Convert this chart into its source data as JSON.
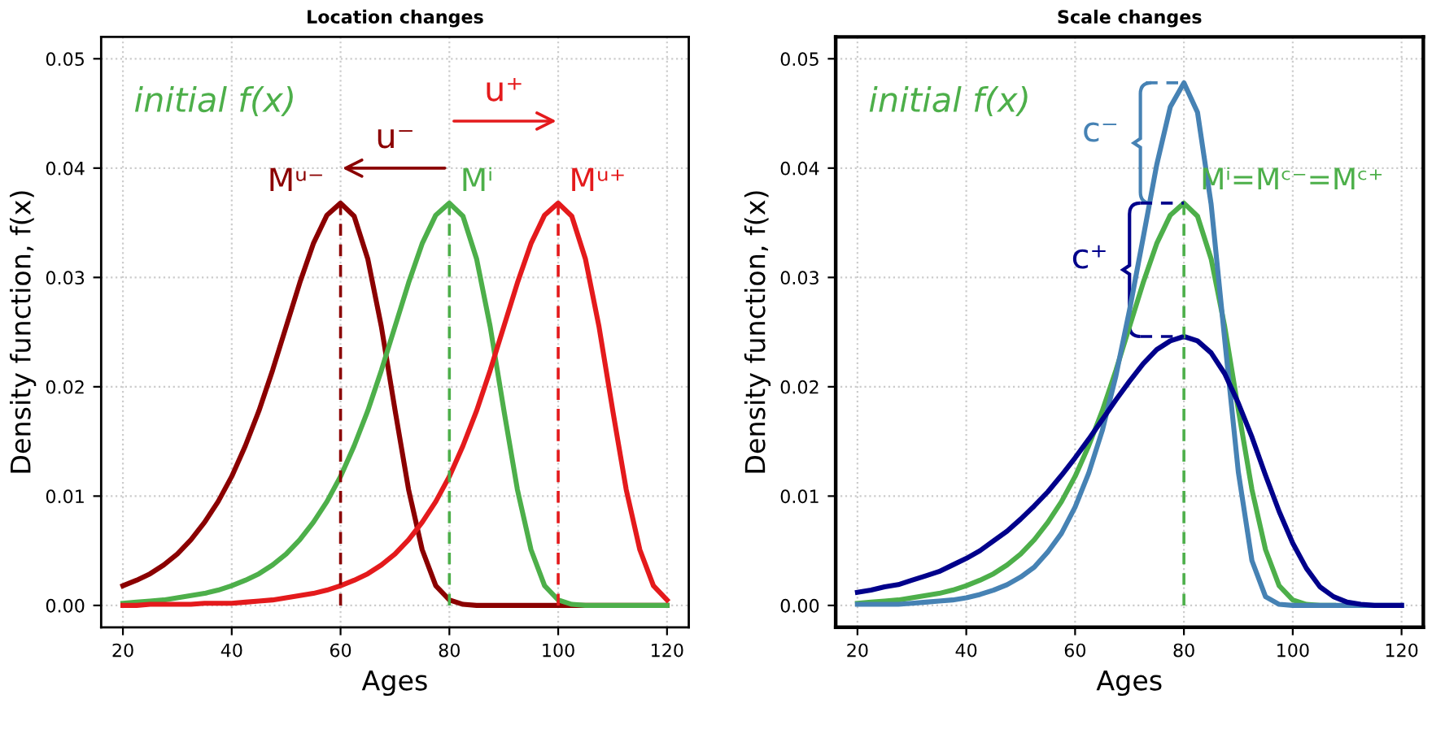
{
  "chart_data": [
    {
      "type": "line",
      "title": "Location changes",
      "xlabel": "Ages",
      "ylabel": "Density function, f(x)",
      "x": [
        20,
        22.5,
        25,
        27.5,
        30,
        32.5,
        35,
        37.5,
        40,
        42.5,
        45,
        47.5,
        50,
        52.5,
        55,
        57.5,
        60,
        62.5,
        65,
        67.5,
        70,
        72.5,
        75,
        77.5,
        80,
        82.5,
        85,
        87.5,
        90,
        92.5,
        95,
        97.5,
        100,
        102.5,
        105,
        107.5,
        110,
        112.5,
        115,
        117.5,
        120
      ],
      "series": [
        {
          "color": "#8b0000",
          "values": [
            0.0018,
            0.0023,
            0.0029,
            0.0037,
            0.0047,
            0.006,
            0.0076,
            0.0095,
            0.0118,
            0.0146,
            0.0178,
            0.0215,
            0.0255,
            0.0295,
            0.0331,
            0.0357,
            0.0368,
            0.0356,
            0.0317,
            0.0255,
            0.0179,
            0.0106,
            0.0051,
            0.0018,
            0.0005,
            0.0001,
            0,
            0,
            0,
            0,
            0,
            0,
            0,
            0,
            0,
            0,
            0,
            0,
            0,
            0,
            0
          ]
        },
        {
          "color": "#4daf4a",
          "values": [
            0.0002,
            0.0003,
            0.0004,
            0.0005,
            0.0007,
            0.0009,
            0.0011,
            0.0014,
            0.0018,
            0.0023,
            0.0029,
            0.0037,
            0.0047,
            0.006,
            0.0076,
            0.0095,
            0.0118,
            0.0146,
            0.0178,
            0.0215,
            0.0255,
            0.0295,
            0.0331,
            0.0357,
            0.0368,
            0.0356,
            0.0317,
            0.0255,
            0.0179,
            0.0106,
            0.0051,
            0.0018,
            0.0005,
            0.0001,
            0,
            0,
            0,
            0,
            0,
            0,
            0
          ]
        },
        {
          "color": "#e41a1c",
          "values": [
            0,
            0,
            0.0001,
            0.0001,
            0.0001,
            0.0001,
            0.0002,
            0.0002,
            0.0002,
            0.0003,
            0.0004,
            0.0005,
            0.0007,
            0.0009,
            0.0011,
            0.0014,
            0.0018,
            0.0023,
            0.0029,
            0.0037,
            0.0047,
            0.006,
            0.0076,
            0.0095,
            0.0118,
            0.0146,
            0.0178,
            0.0215,
            0.0255,
            0.0295,
            0.0331,
            0.0357,
            0.0368,
            0.0356,
            0.0317,
            0.0255,
            0.0179,
            0.0106,
            0.0051,
            0.0018,
            0.0005
          ]
        },
        {
          "color": "#8b0000",
          "x": [
            60,
            60
          ],
          "values": [
            0,
            0.0368
          ],
          "line_style": "dashed"
        },
        {
          "color": "#4daf4a",
          "x": [
            80,
            80
          ],
          "values": [
            0,
            0.0368
          ],
          "line_style": "dashed"
        },
        {
          "color": "#e41a1c",
          "x": [
            100,
            100
          ],
          "values": [
            0,
            0.0368
          ],
          "line_style": "dashed"
        }
      ],
      "annotations": [
        "initial f(x)",
        "u⁻",
        "u⁺",
        {
          "text": "Mᵘ⁻",
          "x": 60,
          "y": 0.0368
        },
        {
          "text": "Mⁱ",
          "x": 80,
          "y": 0.0368
        },
        {
          "text": "Mᵘ⁺",
          "x": 100,
          "y": 0.0368
        }
      ],
      "xlim": [
        16,
        124
      ],
      "xticks": [
        20,
        40,
        60,
        80,
        100,
        120
      ],
      "ylim": [
        -0.002,
        0.052
      ],
      "yticks": [
        {
          "value": 0,
          "label": "0.00"
        },
        {
          "value": 0.01,
          "label": "0.01"
        },
        {
          "value": 0.02,
          "label": "0.02"
        },
        {
          "value": 0.03,
          "label": "0.03"
        },
        {
          "value": 0.04,
          "label": "0.04"
        },
        {
          "value": 0.05,
          "label": "0.05"
        }
      ],
      "grid": true,
      "line_style": "solid",
      "marker": "none"
    },
    {
      "type": "line",
      "title": "Scale changes",
      "xlabel": "Ages",
      "ylabel": "Density function, f(x)",
      "x": [
        20,
        22.5,
        25,
        27.5,
        30,
        32.5,
        35,
        37.5,
        40,
        42.5,
        45,
        47.5,
        50,
        52.5,
        55,
        57.5,
        60,
        62.5,
        65,
        67.5,
        70,
        72.5,
        75,
        77.5,
        80,
        82.5,
        85,
        87.5,
        90,
        92.5,
        95,
        97.5,
        100,
        102.5,
        105,
        107.5,
        110,
        112.5,
        115,
        117.5,
        120
      ],
      "series": [
        {
          "color": "#4daf4a",
          "values": [
            0.0002,
            0.0003,
            0.0004,
            0.0005,
            0.0007,
            0.0009,
            0.0011,
            0.0014,
            0.0018,
            0.0023,
            0.0029,
            0.0037,
            0.0047,
            0.006,
            0.0076,
            0.0095,
            0.0118,
            0.0146,
            0.0178,
            0.0215,
            0.0255,
            0.0295,
            0.0331,
            0.0357,
            0.0368,
            0.0356,
            0.0317,
            0.0255,
            0.0179,
            0.0106,
            0.0051,
            0.0018,
            0.0005,
            0.0001,
            0,
            0,
            null,
            null,
            null,
            null,
            null
          ]
        },
        {
          "color": "#4682b4",
          "values": [
            0.0001,
            0.0001,
            0.0001,
            0.0001,
            0.0002,
            0.0003,
            0.0004,
            0.0005,
            0.0007,
            0.001,
            0.0014,
            0.0019,
            0.0026,
            0.0035,
            0.0049,
            0.0066,
            0.009,
            0.0121,
            0.016,
            0.021,
            0.027,
            0.0336,
            0.0403,
            0.0456,
            0.0478,
            0.0451,
            0.0367,
            0.0243,
            0.0122,
            0.0041,
            0.0008,
            0.0001,
            0,
            0,
            0,
            0,
            0,
            0,
            0,
            0,
            0
          ]
        },
        {
          "color": "#00008b",
          "values": [
            0.0012,
            0.0014,
            0.0017,
            0.0019,
            0.0023,
            0.0027,
            0.0031,
            0.0037,
            0.0043,
            0.005,
            0.0059,
            0.0068,
            0.0079,
            0.0091,
            0.0104,
            0.0119,
            0.0135,
            0.0152,
            0.017,
            0.0188,
            0.0205,
            0.0221,
            0.0234,
            0.0242,
            0.0246,
            0.0242,
            0.0231,
            0.0212,
            0.0185,
            0.0154,
            0.0119,
            0.0086,
            0.0057,
            0.0034,
            0.0017,
            0.0008,
            0.0003,
            0.0001,
            0,
            0,
            0
          ]
        },
        {
          "color": "#4daf4a",
          "x": [
            80,
            80
          ],
          "values": [
            0,
            0.0368
          ],
          "line_style": "dashed"
        },
        {
          "color": "#4682b4",
          "x": [
            73,
            80
          ],
          "values": [
            0.0478,
            0.0478
          ],
          "line_style": "dashed"
        },
        {
          "color": "#00008b",
          "x": [
            72,
            80
          ],
          "values": [
            0.0368,
            0.0368
          ],
          "line_style": "dashed"
        },
        {
          "color": "#00008b",
          "x": [
            72,
            80
          ],
          "values": [
            0.0246,
            0.0246
          ],
          "line_style": "dashed"
        }
      ],
      "annotations": [
        "initial f(x)",
        "c⁻",
        "c⁺",
        {
          "text": "Mⁱ=Mᶜ⁻=Mᶜ⁺",
          "x": 80,
          "y": 0.0368
        }
      ],
      "xlim": [
        16,
        124
      ],
      "xticks": [
        20,
        40,
        60,
        80,
        100,
        120
      ],
      "ylim": [
        -0.002,
        0.052
      ],
      "yticks": [
        {
          "value": 0,
          "label": "0.00"
        },
        {
          "value": 0.01,
          "label": "0.01"
        },
        {
          "value": 0.02,
          "label": "0.02"
        },
        {
          "value": 0.03,
          "label": "0.03"
        },
        {
          "value": 0.04,
          "label": "0.04"
        },
        {
          "value": 0.05,
          "label": "0.05"
        }
      ],
      "grid": true,
      "line_style": "solid",
      "marker": "none"
    }
  ]
}
